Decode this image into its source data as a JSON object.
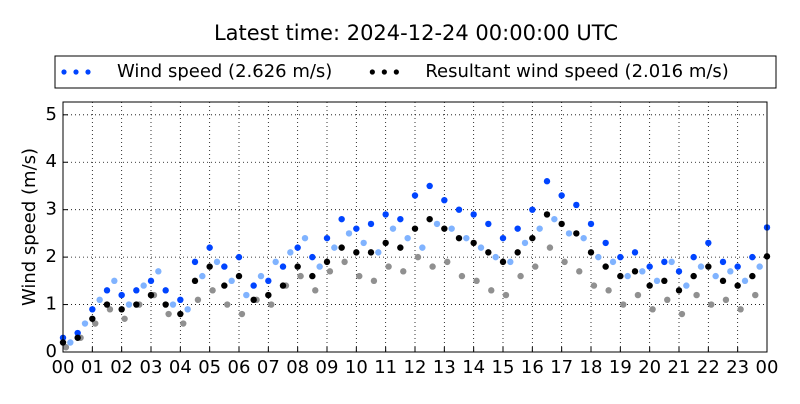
{
  "chart_data": {
    "type": "scatter",
    "title": "Latest time: 2024-12-24 00:00:00 UTC",
    "y_label": "Wind speed (m/s)",
    "legend_position": "top",
    "grid": true,
    "xlim": [
      0,
      24
    ],
    "ylim": [
      0,
      5.27
    ],
    "xticks": [
      {
        "value": 0,
        "label": "00"
      },
      {
        "value": 1,
        "label": "01"
      },
      {
        "value": 2,
        "label": "02"
      },
      {
        "value": 3,
        "label": "03"
      },
      {
        "value": 4,
        "label": "04"
      },
      {
        "value": 5,
        "label": "05"
      },
      {
        "value": 6,
        "label": "06"
      },
      {
        "value": 7,
        "label": "07"
      },
      {
        "value": 8,
        "label": "08"
      },
      {
        "value": 9,
        "label": "09"
      },
      {
        "value": 10,
        "label": "10"
      },
      {
        "value": 11,
        "label": "11"
      },
      {
        "value": 12,
        "label": "12"
      },
      {
        "value": 13,
        "label": "13"
      },
      {
        "value": 14,
        "label": "14"
      },
      {
        "value": 15,
        "label": "15"
      },
      {
        "value": 16,
        "label": "16"
      },
      {
        "value": 17,
        "label": "17"
      },
      {
        "value": 18,
        "label": "18"
      },
      {
        "value": 19,
        "label": "19"
      },
      {
        "value": 20,
        "label": "20"
      },
      {
        "value": 21,
        "label": "21"
      },
      {
        "value": 22,
        "label": "22"
      },
      {
        "value": 23,
        "label": "23"
      },
      {
        "value": 24,
        "label": "00"
      }
    ],
    "yticks": [
      0,
      1,
      2,
      3,
      4,
      5
    ],
    "series": [
      {
        "color": "#80b3ff",
        "x": [
          0.25,
          0.75,
          1.25,
          1.75,
          2.25,
          2.75,
          3.25,
          3.75,
          4.25,
          4.75,
          5.25,
          5.75,
          6.25,
          6.75,
          7.25,
          7.75,
          8.25,
          8.75,
          9.25,
          9.75,
          10.25,
          10.75,
          11.25,
          11.75,
          12.25,
          12.75,
          13.25,
          13.75,
          14.25,
          14.75,
          15.25,
          15.75,
          16.25,
          16.75,
          17.25,
          17.75,
          18.25,
          18.75,
          19.25,
          19.75,
          20.25,
          20.75,
          21.25,
          21.75,
          22.25,
          22.75,
          23.25,
          23.75
        ],
        "values": [
          0.2,
          0.6,
          1.1,
          1.5,
          1.0,
          1.4,
          1.7,
          1.0,
          0.9,
          1.6,
          1.9,
          1.5,
          1.2,
          1.6,
          1.9,
          2.1,
          2.4,
          1.8,
          2.2,
          2.5,
          2.3,
          2.1,
          2.6,
          2.4,
          2.2,
          2.7,
          2.6,
          2.4,
          2.2,
          2.0,
          1.9,
          2.3,
          2.6,
          2.8,
          2.5,
          2.4,
          2.0,
          1.9,
          1.6,
          1.7,
          1.5,
          1.9,
          1.4,
          1.8,
          1.6,
          1.7,
          1.5,
          1.8
        ]
      },
      {
        "color": "#909090",
        "x": [
          0.1,
          0.6,
          1.1,
          1.6,
          2.1,
          2.6,
          3.1,
          3.6,
          4.1,
          4.6,
          5.1,
          5.6,
          6.1,
          6.6,
          7.1,
          7.6,
          8.1,
          8.6,
          9.1,
          9.6,
          10.1,
          10.6,
          11.1,
          11.6,
          12.1,
          12.6,
          13.1,
          13.6,
          14.1,
          14.6,
          15.1,
          15.6,
          16.1,
          16.6,
          17.1,
          17.6,
          18.1,
          18.6,
          19.1,
          19.6,
          20.1,
          20.6,
          21.1,
          21.6,
          22.1,
          22.6,
          23.1,
          23.6
        ],
        "values": [
          0.1,
          0.3,
          0.6,
          0.9,
          0.7,
          1.0,
          1.2,
          0.8,
          0.6,
          1.1,
          1.3,
          1.0,
          0.8,
          1.1,
          1.0,
          1.4,
          1.6,
          1.3,
          1.7,
          1.9,
          1.6,
          1.5,
          1.8,
          1.7,
          2.0,
          1.8,
          1.9,
          1.6,
          1.5,
          1.3,
          1.2,
          1.6,
          1.8,
          2.2,
          1.9,
          1.7,
          1.4,
          1.3,
          1.0,
          1.2,
          0.9,
          1.1,
          0.8,
          1.2,
          1.0,
          1.1,
          0.9,
          1.2
        ]
      },
      {
        "name": "Wind speed (2.626 m/s)",
        "color": "#0044ff",
        "x": [
          0,
          0.5,
          1,
          1.5,
          2,
          2.5,
          3,
          3.5,
          4,
          4.5,
          5,
          5.5,
          6,
          6.5,
          7,
          7.5,
          8,
          8.5,
          9,
          9.5,
          10,
          10.5,
          11,
          11.5,
          12,
          12.5,
          13,
          13.5,
          14,
          14.5,
          15,
          15.5,
          16,
          16.5,
          17,
          17.5,
          18,
          18.5,
          19,
          19.5,
          20,
          20.5,
          21,
          21.5,
          22,
          22.5,
          23,
          23.5,
          24
        ],
        "values": [
          0.3,
          0.4,
          0.9,
          1.3,
          1.2,
          1.3,
          1.5,
          1.3,
          1.1,
          1.9,
          2.2,
          1.8,
          2.0,
          1.4,
          1.5,
          1.8,
          2.2,
          2.0,
          2.4,
          2.8,
          2.6,
          2.7,
          2.9,
          2.8,
          3.3,
          3.5,
          3.2,
          3.0,
          2.9,
          2.7,
          2.4,
          2.6,
          3.0,
          3.6,
          3.3,
          3.1,
          2.7,
          2.3,
          2.0,
          2.1,
          1.8,
          1.9,
          1.7,
          2.0,
          2.3,
          1.9,
          1.8,
          2.0,
          2.626
        ]
      },
      {
        "name": "Resultant wind speed (2.016 m/s)",
        "color": "#000000",
        "x": [
          0,
          0.5,
          1,
          1.5,
          2,
          2.5,
          3,
          3.5,
          4,
          4.5,
          5,
          5.5,
          6,
          6.5,
          7,
          7.5,
          8,
          8.5,
          9,
          9.5,
          10,
          10.5,
          11,
          11.5,
          12,
          12.5,
          13,
          13.5,
          14,
          14.5,
          15,
          15.5,
          16,
          16.5,
          17,
          17.5,
          18,
          18.5,
          19,
          19.5,
          20,
          20.5,
          21,
          21.5,
          22,
          22.5,
          23,
          23.5,
          24
        ],
        "values": [
          0.2,
          0.3,
          0.7,
          1.0,
          0.9,
          1.0,
          1.2,
          1.0,
          0.8,
          1.5,
          1.8,
          1.4,
          1.6,
          1.1,
          1.2,
          1.4,
          1.8,
          1.6,
          1.9,
          2.2,
          2.1,
          2.1,
          2.3,
          2.2,
          2.6,
          2.8,
          2.6,
          2.4,
          2.3,
          2.1,
          1.9,
          2.1,
          2.4,
          2.9,
          2.7,
          2.5,
          2.1,
          1.8,
          1.6,
          1.7,
          1.4,
          1.5,
          1.3,
          1.6,
          1.8,
          1.5,
          1.4,
          1.6,
          2.016
        ]
      }
    ]
  }
}
